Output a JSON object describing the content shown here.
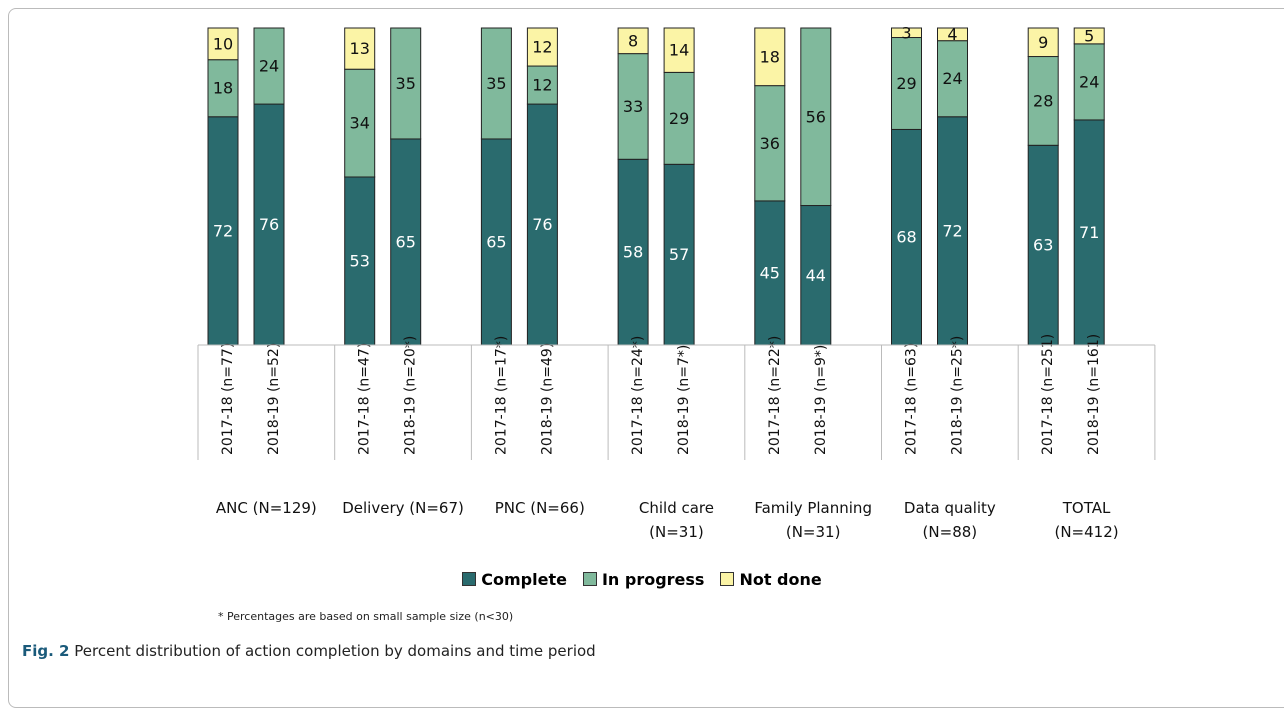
{
  "chart_data": {
    "type": "bar",
    "stacked": true,
    "categories": [
      "2017-18 (n=77)",
      "2018-19 (n=52)",
      "2017-18 (n=47)",
      "2018-19 (n=20*)",
      "2017-18 (n=17*)",
      "2018-19 (n=49)",
      "2017-18 (n=24*)",
      "2018-19 (n=7*)",
      "2017-18 (n=22*)",
      "2018-19 (n=9*)",
      "2017-18 (n=63)",
      "2018-19 (n=25*)",
      "2017-18 (n=251)",
      "2018-19 (n=161)"
    ],
    "groups": [
      "ANC (N=129)",
      "Delivery (N=67)",
      "PNC (N=66)",
      "Child care\n(N=31)",
      "Family Planning\n(N=31)",
      "Data quality\n(N=88)",
      "TOTAL\n(N=412)"
    ],
    "series": [
      {
        "name": "Complete",
        "color": "#2a6b6e",
        "values": [
          72,
          76,
          53,
          65,
          65,
          76,
          58,
          57,
          45,
          44,
          68,
          72,
          63,
          71
        ]
      },
      {
        "name": "In progress",
        "color": "#80b99c",
        "values": [
          18,
          24,
          34,
          35,
          35,
          12,
          33,
          29,
          36,
          56,
          29,
          24,
          28,
          24
        ]
      },
      {
        "name": "Not done",
        "color": "#fbf4a6",
        "values": [
          10,
          null,
          13,
          null,
          null,
          12,
          8,
          14,
          18,
          null,
          3,
          4,
          9,
          5
        ]
      }
    ],
    "footnote": "* Percentages are based on small sample size (n<30)"
  },
  "caption": {
    "label": "Fig. 2",
    "text": "Percent distribution of action completion by domains and time period"
  }
}
